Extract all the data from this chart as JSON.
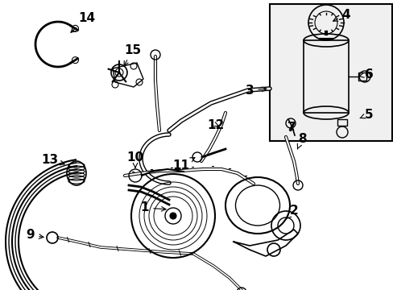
{
  "background_color": "#ffffff",
  "figure_width": 4.89,
  "figure_height": 3.6,
  "dpi": 100,
  "image_data": "target_embedded"
}
